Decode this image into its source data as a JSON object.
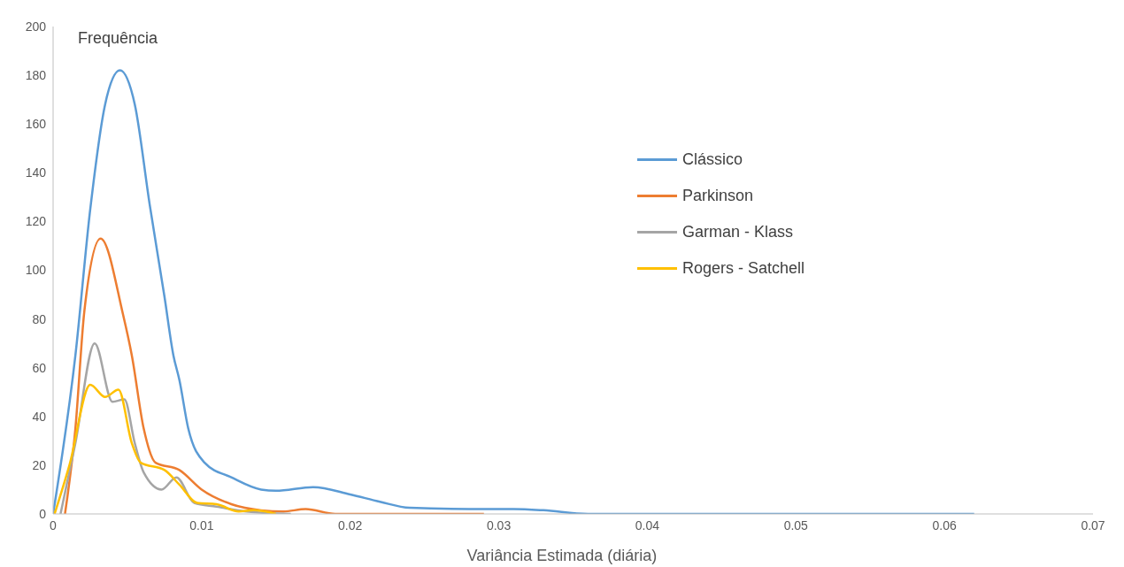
{
  "chart_data": {
    "type": "line",
    "ylabel": "Frequência",
    "xlabel": "Variância Estimada (diária)",
    "xlim": [
      0,
      0.07
    ],
    "xticks": [
      0,
      0.01,
      0.02,
      0.03,
      0.04,
      0.05,
      0.06,
      0.07
    ],
    "ylim": [
      0,
      200
    ],
    "yticks": [
      0,
      20,
      40,
      60,
      80,
      100,
      120,
      140,
      160,
      180,
      200
    ],
    "grid": false,
    "legend": "top right",
    "marker": "none",
    "line_style": "solid",
    "series": [
      {
        "name": "Clássico",
        "color": "#5b9bd5",
        "x": [
          0,
          0.0015,
          0.0025,
          0.0035,
          0.0045,
          0.0055,
          0.0065,
          0.0075,
          0.0081,
          0.0085,
          0.0091,
          0.0102,
          0.012,
          0.014,
          0.015,
          0.0175,
          0.02,
          0.022,
          0.024,
          0.028,
          0.031,
          0.033,
          0.036,
          0.062
        ],
        "values": [
          0,
          65,
          125,
          168,
          182,
          168,
          127,
          89,
          65,
          55,
          35,
          21,
          15,
          10,
          9.5,
          11,
          8,
          5,
          2.5,
          2,
          2,
          1.5,
          0,
          0
        ]
      },
      {
        "name": "Parkinson",
        "color": "#ed7d31",
        "x": [
          0.0008,
          0.0015,
          0.0021,
          0.0032,
          0.0047,
          0.0053,
          0.0061,
          0.0069,
          0.0085,
          0.01,
          0.012,
          0.014,
          0.0155,
          0.017,
          0.019,
          0.029
        ],
        "values": [
          0,
          35,
          83,
          113,
          82,
          65,
          35,
          21,
          18,
          10,
          4,
          1.5,
          1,
          2,
          0,
          0
        ]
      },
      {
        "name": "Garman - Klass",
        "color": "#a5a5a5",
        "x": [
          0.0005,
          0.0015,
          0.0028,
          0.004,
          0.0048,
          0.0055,
          0.0061,
          0.0073,
          0.0083,
          0.0095,
          0.011,
          0.013,
          0.016
        ],
        "values": [
          0,
          29,
          70,
          46,
          47,
          29,
          17,
          10,
          15,
          4.5,
          3,
          1,
          0
        ]
      },
      {
        "name": "Rogers - Satchell",
        "color": "#ffc000",
        "x": [
          0.0001,
          0.0011,
          0.0025,
          0.0035,
          0.0044,
          0.0053,
          0.0059,
          0.0075,
          0.0085,
          0.0097,
          0.011,
          0.0125,
          0.0135,
          0.015
        ],
        "values": [
          0,
          20,
          53,
          48,
          51,
          29,
          21,
          18,
          12,
          4.5,
          4,
          1,
          1.5,
          0
        ]
      }
    ]
  }
}
